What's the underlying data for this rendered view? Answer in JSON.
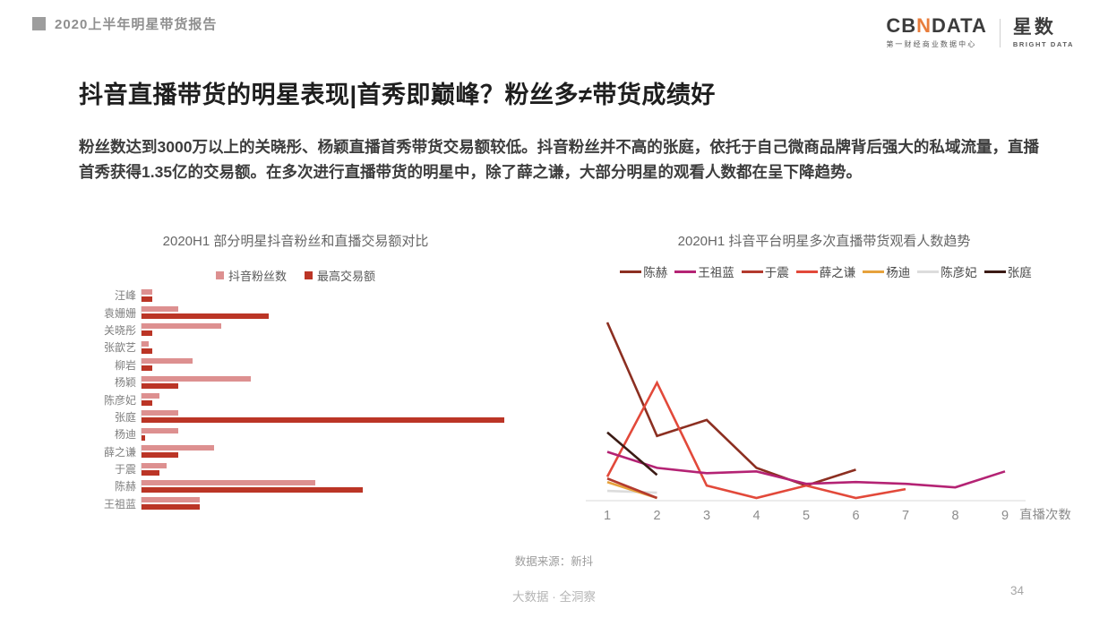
{
  "header": {
    "report_title": "2020上半年明星带货报告"
  },
  "logo": {
    "cb": "CB",
    "n": "N",
    "data_word": "DATA",
    "subtitle": "第一财经商业数据中心",
    "star": "星数",
    "star_sub": "BRIGHT DATA",
    "accent_color": "#E87D3C"
  },
  "slide": {
    "title": "抖音直播带货的明星表现|首秀即巅峰？粉丝多≠带货成绩好",
    "body": "粉丝数达到3000万以上的关晓彤、杨颖直播首秀带货交易额较低。抖音粉丝并不高的张庭，依托于自己微商品牌背后强大的私域流量，直播首秀获得1.35亿的交易额。在多次进行直播带货的明星中，除了薛之谦，大部分明星的观看人数都在呈下降趋势。"
  },
  "chart_data": [
    {
      "type": "bar",
      "orientation": "horizontal",
      "title": "2020H1 部分明星抖音粉丝和直播交易额对比",
      "categories": [
        "汪峰",
        "袁姗姗",
        "关晓彤",
        "张歆艺",
        "柳岩",
        "杨颖",
        "陈彦妃",
        "张庭",
        "杨迪",
        "薛之谦",
        "于震",
        "陈赫",
        "王祖蓝"
      ],
      "series": [
        {
          "name": "抖音粉丝数",
          "color": "#DD9090",
          "values": [
            3,
            10,
            22,
            2,
            14,
            30,
            5,
            10,
            10,
            20,
            7,
            48,
            16
          ]
        },
        {
          "name": "最高交易额",
          "color": "#BB3526",
          "values": [
            3,
            35,
            3,
            3,
            3,
            10,
            3,
            100,
            1,
            10,
            5,
            61,
            16
          ]
        }
      ],
      "axis_note": "x axis unlabeled; values are relative (longest bar 张庭·最高交易额 = 100)",
      "grid": false,
      "legend_position": "top-center"
    },
    {
      "type": "line",
      "title": "2020H1 抖音平台明星多次直播带货观看人数趋势",
      "x": [
        1,
        2,
        3,
        4,
        5,
        6,
        7,
        8,
        9
      ],
      "xlabel": "直播次数",
      "series": [
        {
          "name": "陈赫",
          "color": "#8C2F21",
          "values": [
            100,
            36,
            45,
            18,
            8,
            17
          ]
        },
        {
          "name": "王祖蓝",
          "color": "#B42374",
          "values": [
            27,
            18,
            15,
            16,
            9,
            10,
            9,
            7,
            16
          ]
        },
        {
          "name": "于震",
          "color": "#B33A2E",
          "values": [
            12,
            1
          ]
        },
        {
          "name": "薛之谦",
          "color": "#E2493A",
          "values": [
            13,
            66,
            8,
            1,
            8,
            1,
            6
          ]
        },
        {
          "name": "杨迪",
          "color": "#E6A23C",
          "values": [
            10,
            1
          ]
        },
        {
          "name": "陈彦妃",
          "color": "#DCDCDC",
          "values": [
            5,
            4
          ]
        },
        {
          "name": "张庭",
          "color": "#3B1B15",
          "values": [
            38,
            14
          ]
        }
      ],
      "axis_note": "y axis unlabeled; values are relative 0-100 (陈赫第1次直播 = 100)",
      "grid": false,
      "legend_position": "top-center"
    }
  ],
  "footer": {
    "source": "数据来源：新抖",
    "tagline": "大数据 · 全洞察",
    "page": "34"
  }
}
